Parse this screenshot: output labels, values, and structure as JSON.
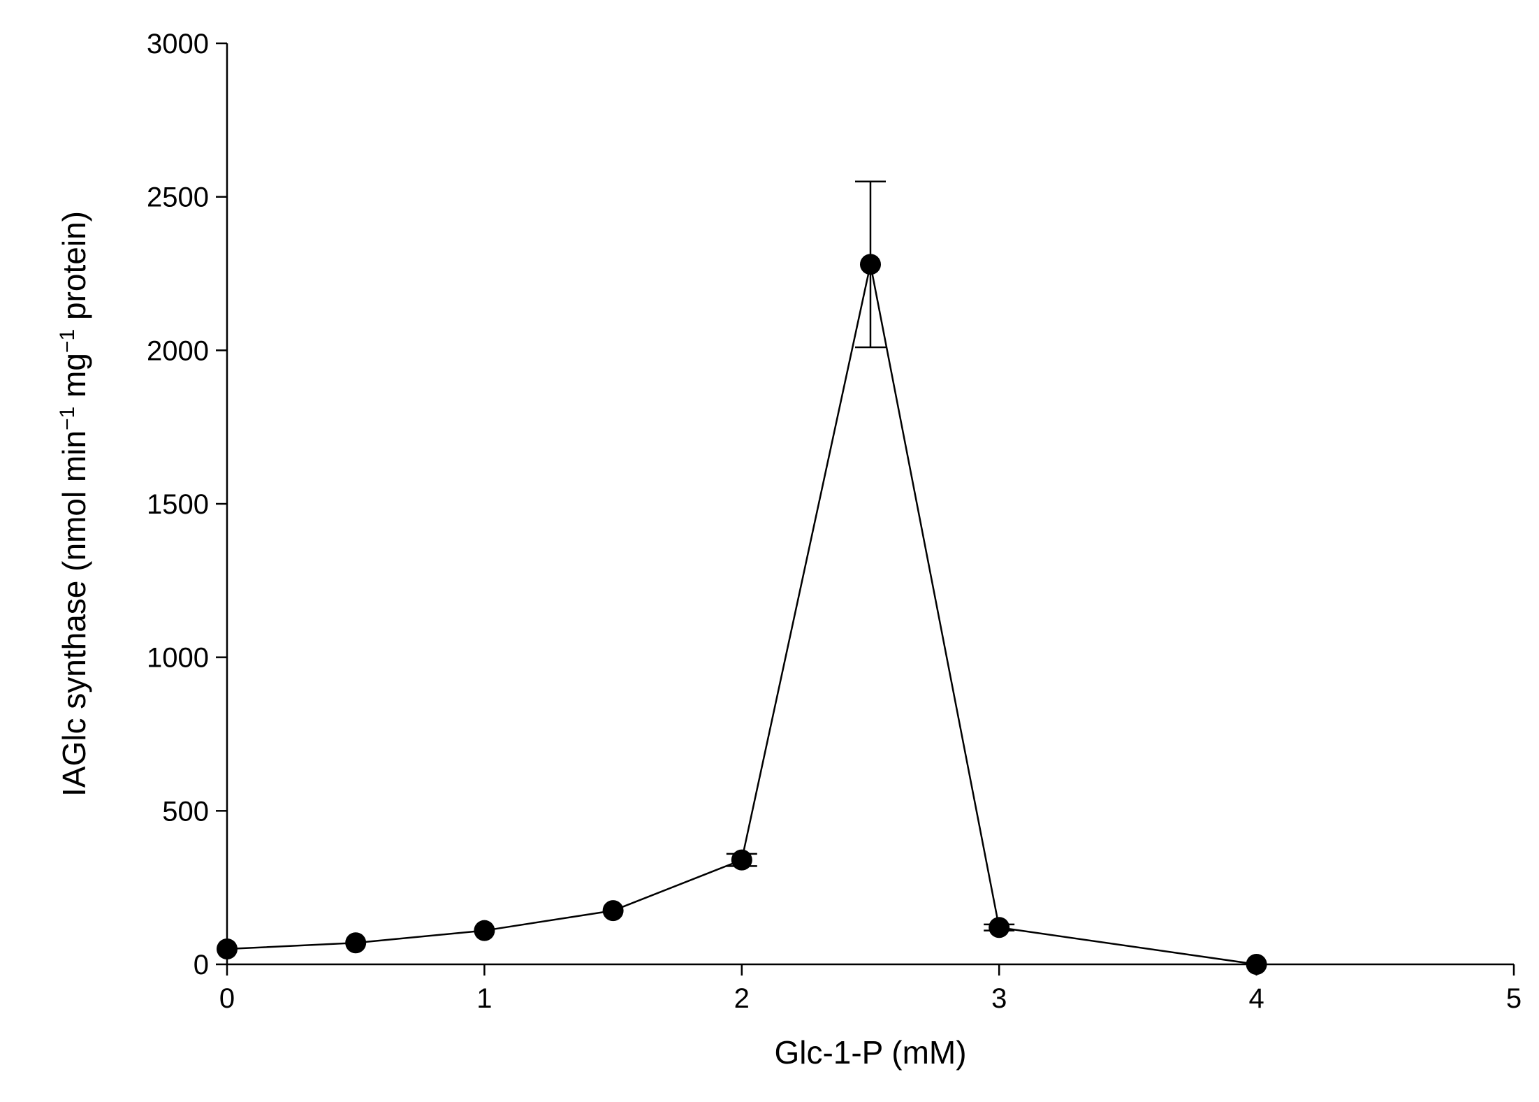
{
  "chart_data": {
    "type": "line",
    "xlabel": "Glc-1-P (mM)",
    "ylabel": {
      "parts": [
        "IAGlc synthase (nmol min",
        "−1",
        " mg",
        "−1",
        " protein)"
      ]
    },
    "xlim": [
      0,
      5
    ],
    "ylim": [
      0,
      3000
    ],
    "x_ticks": [
      0,
      1,
      2,
      3,
      4,
      5
    ],
    "y_ticks": [
      0,
      500,
      1000,
      1500,
      2000,
      2500,
      3000
    ],
    "grid": false,
    "marker": "filled-circle",
    "line_color": "#000000",
    "series": [
      {
        "x": [
          0,
          0.5,
          1,
          1.5,
          2,
          2.5,
          3,
          4
        ],
        "y": [
          50,
          70,
          110,
          175,
          340,
          2280,
          120,
          0
        ],
        "error": [
          0,
          0,
          0,
          0,
          20,
          270,
          10,
          0
        ]
      }
    ]
  }
}
